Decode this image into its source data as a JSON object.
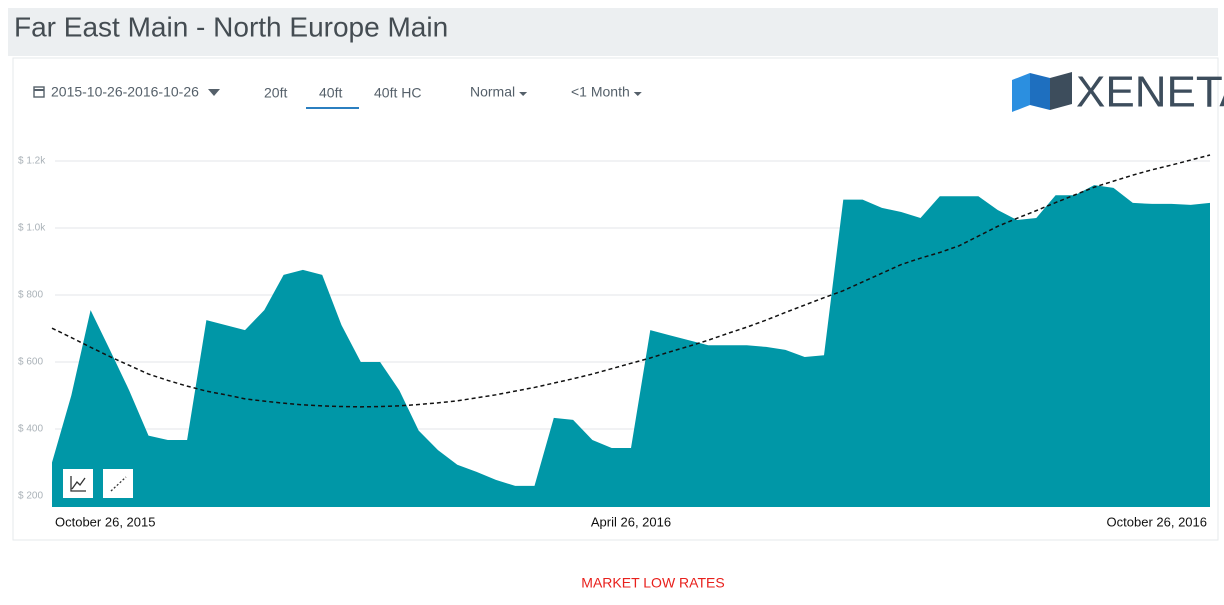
{
  "header": {
    "title": "Far East Main - North Europe Main"
  },
  "logo": "XENETA",
  "controls": {
    "date_range": "2015-10-26-2016-10-26",
    "tabs": [
      "20ft",
      "40ft",
      "40ft HC"
    ],
    "active_tab": 1,
    "dropdowns": [
      "Normal",
      "<1 Month"
    ]
  },
  "chart_data": {
    "type": "area",
    "caption": "MARKET LOW RATES",
    "categories": [
      "October 26, 2015",
      null,
      null,
      null,
      null,
      null,
      null,
      null,
      null,
      null,
      null,
      null,
      null,
      null,
      null,
      null,
      null,
      null,
      null,
      null,
      null,
      null,
      null,
      null,
      null,
      null,
      null,
      null,
      null,
      null,
      "April 26, 2016",
      null,
      null,
      null,
      null,
      null,
      null,
      null,
      null,
      null,
      null,
      null,
      null,
      null,
      null,
      null,
      null,
      null,
      null,
      null,
      null,
      null,
      null,
      null,
      null,
      null,
      null,
      null,
      null,
      null,
      "October 26, 2016"
    ],
    "values": [
      300,
      500,
      755,
      636,
      515,
      380,
      367,
      367,
      725,
      710,
      695,
      755,
      860,
      875,
      860,
      710,
      600,
      600,
      515,
      395,
      337,
      293,
      272,
      248,
      230,
      230,
      433,
      427,
      367,
      343,
      343,
      695,
      680,
      665,
      650,
      650,
      650,
      645,
      636,
      615,
      620,
      1085,
      1085,
      1060,
      1048,
      1030,
      1095,
      1095,
      1095,
      1054,
      1024,
      1030,
      1098,
      1098,
      1128,
      1120,
      1075,
      1072,
      1072,
      1069,
      1075
    ],
    "color": "#0097a7",
    "trend": {
      "color": "#111111",
      "dashed": true,
      "values": [
        701,
        673,
        644,
        616,
        590,
        564,
        545,
        528,
        513,
        502,
        490,
        483,
        477,
        472,
        469,
        467,
        466,
        467,
        469,
        473,
        478,
        484,
        493,
        502,
        513,
        524,
        537,
        550,
        564,
        580,
        596,
        612,
        630,
        647,
        665,
        685,
        704,
        725,
        748,
        770,
        792,
        813,
        839,
        865,
        891,
        910,
        927,
        947,
        976,
        1005,
        1029,
        1052,
        1076,
        1099,
        1122,
        1140,
        1158,
        1174,
        1188,
        1203,
        1218
      ]
    },
    "ylim": [
      167,
      1233
    ],
    "yticks": [
      {
        "value": 200,
        "label": "$ 200"
      },
      {
        "value": 400,
        "label": "$ 400"
      },
      {
        "value": 600,
        "label": "$ 600"
      },
      {
        "value": 800,
        "label": "$ 800"
      },
      {
        "value": 1000,
        "label": "$ 1.0k"
      },
      {
        "value": 1200,
        "label": "$ 1.2k"
      }
    ],
    "grid": true
  }
}
